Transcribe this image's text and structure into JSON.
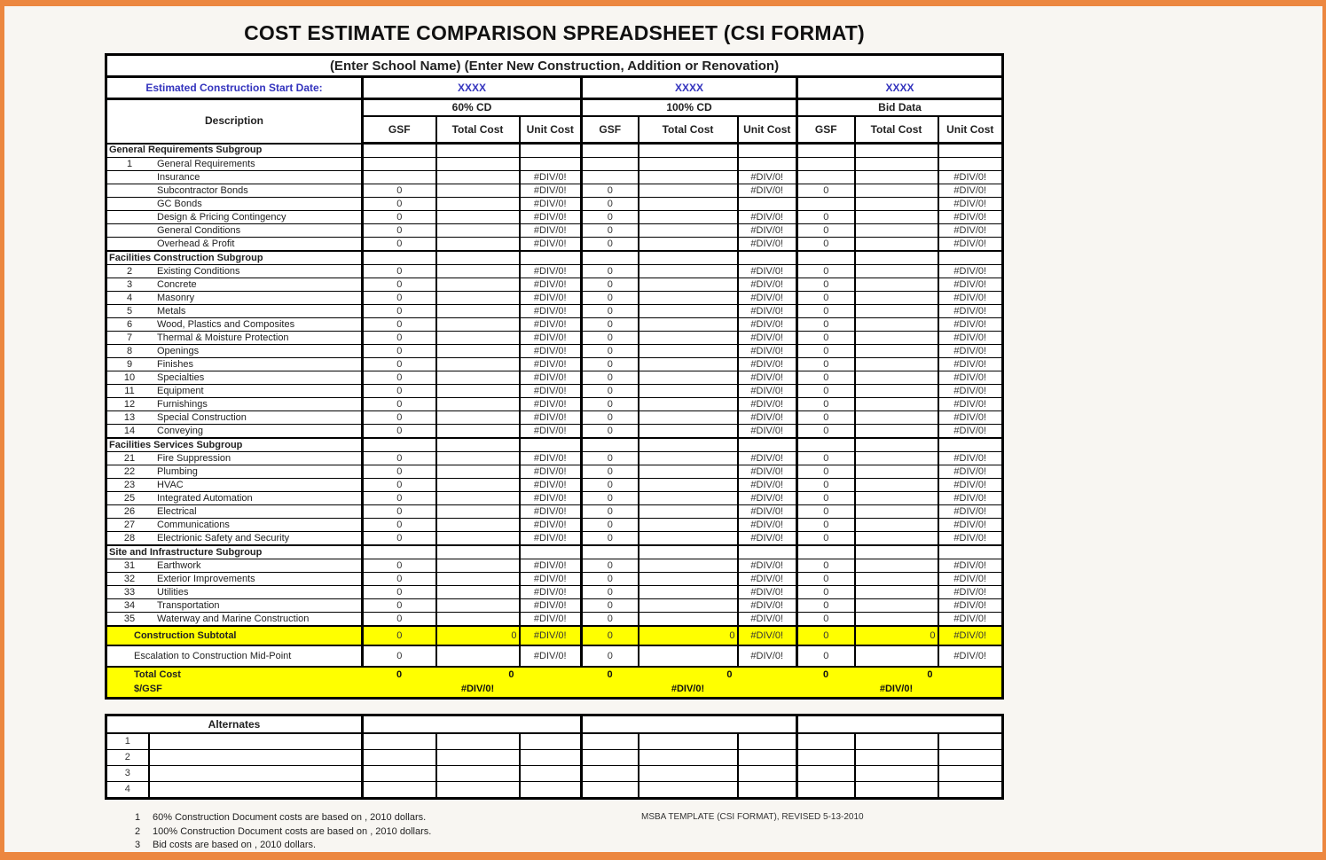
{
  "frame": {
    "border_color": "#EC8740",
    "page_bg": "#F8F6F2",
    "highlight_yellow": "#FFFF00",
    "accent_blue": "#3434BE"
  },
  "title": "COST ESTIMATE COMPARISON SPREADSHEET (CSI FORMAT)",
  "header": {
    "school_line": "(Enter School Name) (Enter New Construction, Addition or Renovation)",
    "date_label": "Estimated Construction Start Date:",
    "date_values": [
      "XXXX",
      "XXXX",
      "XXXX"
    ],
    "description_label": "Description",
    "groups": [
      {
        "label": "60% CD",
        "columns": [
          "GSF",
          "Total Cost",
          "Unit Cost"
        ]
      },
      {
        "label": "100% CD",
        "columns": [
          "GSF",
          "Total Cost",
          "Unit Cost"
        ]
      },
      {
        "label": "Bid Data",
        "columns": [
          "GSF",
          "Total Cost",
          "Unit Cost"
        ]
      }
    ]
  },
  "body": {
    "rows": [
      {
        "type": "subgroup",
        "label": "General Requirements Subgroup"
      },
      {
        "type": "item",
        "num": "1",
        "label": "General Requirements",
        "cells": [
          "",
          "",
          "",
          "",
          "",
          "",
          "",
          "",
          ""
        ]
      },
      {
        "type": "item",
        "num": "",
        "label": "Insurance",
        "cells": [
          "",
          "",
          "#DIV/0!",
          "",
          "",
          "#DIV/0!",
          "",
          "",
          "#DIV/0!"
        ]
      },
      {
        "type": "item",
        "num": "",
        "label": "Subcontractor Bonds",
        "cells": [
          "0",
          "",
          "#DIV/0!",
          "0",
          "",
          "#DIV/0!",
          "0",
          "",
          "#DIV/0!"
        ]
      },
      {
        "type": "item",
        "num": "",
        "label": "GC Bonds",
        "cells": [
          "0",
          "",
          "#DIV/0!",
          "0",
          "",
          "",
          "",
          "",
          "#DIV/0!"
        ]
      },
      {
        "type": "item",
        "num": "",
        "label": "Design & Pricing Contingency",
        "cells": [
          "0",
          "",
          "#DIV/0!",
          "0",
          "",
          "#DIV/0!",
          "0",
          "",
          "#DIV/0!"
        ]
      },
      {
        "type": "item",
        "num": "",
        "label": "General Conditions",
        "cells": [
          "0",
          "",
          "#DIV/0!",
          "0",
          "",
          "#DIV/0!",
          "0",
          "",
          "#DIV/0!"
        ]
      },
      {
        "type": "item",
        "num": "",
        "label": "Overhead & Profit",
        "cells": [
          "0",
          "",
          "#DIV/0!",
          "0",
          "",
          "#DIV/0!",
          "0",
          "",
          "#DIV/0!"
        ]
      },
      {
        "type": "subgroup",
        "label": "Facilities Construction Subgroup"
      },
      {
        "type": "item",
        "num": "2",
        "label": "Existing Conditions",
        "cells": [
          "0",
          "",
          "#DIV/0!",
          "0",
          "",
          "#DIV/0!",
          "0",
          "",
          "#DIV/0!"
        ]
      },
      {
        "type": "item",
        "num": "3",
        "label": "Concrete",
        "cells": [
          "0",
          "",
          "#DIV/0!",
          "0",
          "",
          "#DIV/0!",
          "0",
          "",
          "#DIV/0!"
        ]
      },
      {
        "type": "item",
        "num": "4",
        "label": "Masonry",
        "cells": [
          "0",
          "",
          "#DIV/0!",
          "0",
          "",
          "#DIV/0!",
          "0",
          "",
          "#DIV/0!"
        ]
      },
      {
        "type": "item",
        "num": "5",
        "label": "Metals",
        "cells": [
          "0",
          "",
          "#DIV/0!",
          "0",
          "",
          "#DIV/0!",
          "0",
          "",
          "#DIV/0!"
        ]
      },
      {
        "type": "item",
        "num": "6",
        "label": "Wood, Plastics and Composites",
        "cells": [
          "0",
          "",
          "#DIV/0!",
          "0",
          "",
          "#DIV/0!",
          "0",
          "",
          "#DIV/0!"
        ]
      },
      {
        "type": "item",
        "num": "7",
        "label": "Thermal & Moisture Protection",
        "cells": [
          "0",
          "",
          "#DIV/0!",
          "0",
          "",
          "#DIV/0!",
          "0",
          "",
          "#DIV/0!"
        ]
      },
      {
        "type": "item",
        "num": "8",
        "label": "Openings",
        "cells": [
          "0",
          "",
          "#DIV/0!",
          "0",
          "",
          "#DIV/0!",
          "0",
          "",
          "#DIV/0!"
        ]
      },
      {
        "type": "item",
        "num": "9",
        "label": "Finishes",
        "cells": [
          "0",
          "",
          "#DIV/0!",
          "0",
          "",
          "#DIV/0!",
          "0",
          "",
          "#DIV/0!"
        ]
      },
      {
        "type": "item",
        "num": "10",
        "label": "Specialties",
        "cells": [
          "0",
          "",
          "#DIV/0!",
          "0",
          "",
          "#DIV/0!",
          "0",
          "",
          "#DIV/0!"
        ]
      },
      {
        "type": "item",
        "num": "11",
        "label": "Equipment",
        "cells": [
          "0",
          "",
          "#DIV/0!",
          "0",
          "",
          "#DIV/0!",
          "0",
          "",
          "#DIV/0!"
        ]
      },
      {
        "type": "item",
        "num": "12",
        "label": "Furnishings",
        "cells": [
          "0",
          "",
          "#DIV/0!",
          "0",
          "",
          "#DIV/0!",
          "0",
          "",
          "#DIV/0!"
        ]
      },
      {
        "type": "item",
        "num": "13",
        "label": "Special Construction",
        "cells": [
          "0",
          "",
          "#DIV/0!",
          "0",
          "",
          "#DIV/0!",
          "0",
          "",
          "#DIV/0!"
        ]
      },
      {
        "type": "item",
        "num": "14",
        "label": "Conveying",
        "cells": [
          "0",
          "",
          "#DIV/0!",
          "0",
          "",
          "#DIV/0!",
          "0",
          "",
          "#DIV/0!"
        ]
      },
      {
        "type": "subgroup",
        "label": "Facilities Services Subgroup"
      },
      {
        "type": "item",
        "num": "21",
        "label": "Fire Suppression",
        "cells": [
          "0",
          "",
          "#DIV/0!",
          "0",
          "",
          "#DIV/0!",
          "0",
          "",
          "#DIV/0!"
        ]
      },
      {
        "type": "item",
        "num": "22",
        "label": "Plumbing",
        "cells": [
          "0",
          "",
          "#DIV/0!",
          "0",
          "",
          "#DIV/0!",
          "0",
          "",
          "#DIV/0!"
        ]
      },
      {
        "type": "item",
        "num": "23",
        "label": "HVAC",
        "cells": [
          "0",
          "",
          "#DIV/0!",
          "0",
          "",
          "#DIV/0!",
          "0",
          "",
          "#DIV/0!"
        ]
      },
      {
        "type": "item",
        "num": "25",
        "label": "Integrated Automation",
        "cells": [
          "0",
          "",
          "#DIV/0!",
          "0",
          "",
          "#DIV/0!",
          "0",
          "",
          "#DIV/0!"
        ]
      },
      {
        "type": "item",
        "num": "26",
        "label": "Electrical",
        "cells": [
          "0",
          "",
          "#DIV/0!",
          "0",
          "",
          "#DIV/0!",
          "0",
          "",
          "#DIV/0!"
        ]
      },
      {
        "type": "item",
        "num": "27",
        "label": "Communications",
        "cells": [
          "0",
          "",
          "#DIV/0!",
          "0",
          "",
          "#DIV/0!",
          "0",
          "",
          "#DIV/0!"
        ]
      },
      {
        "type": "item",
        "num": "28",
        "label": "Electrionic Safety and Security",
        "cells": [
          "0",
          "",
          "#DIV/0!",
          "0",
          "",
          "#DIV/0!",
          "0",
          "",
          "#DIV/0!"
        ]
      },
      {
        "type": "subgroup",
        "label": "Site and Infrastructure Subgroup"
      },
      {
        "type": "item",
        "num": "31",
        "label": "Earthwork",
        "cells": [
          "0",
          "",
          "#DIV/0!",
          "0",
          "",
          "#DIV/0!",
          "0",
          "",
          "#DIV/0!"
        ]
      },
      {
        "type": "item",
        "num": "32",
        "label": "Exterior Improvements",
        "cells": [
          "0",
          "",
          "#DIV/0!",
          "0",
          "",
          "#DIV/0!",
          "0",
          "",
          "#DIV/0!"
        ]
      },
      {
        "type": "item",
        "num": "33",
        "label": "Utilities",
        "cells": [
          "0",
          "",
          "#DIV/0!",
          "0",
          "",
          "#DIV/0!",
          "0",
          "",
          "#DIV/0!"
        ]
      },
      {
        "type": "item",
        "num": "34",
        "label": "Transportation",
        "cells": [
          "0",
          "",
          "#DIV/0!",
          "0",
          "",
          "#DIV/0!",
          "0",
          "",
          "#DIV/0!"
        ]
      },
      {
        "type": "item",
        "num": "35",
        "label": "Waterway and Marine Construction",
        "cells": [
          "0",
          "",
          "#DIV/0!",
          "0",
          "",
          "#DIV/0!",
          "0",
          "",
          "#DIV/0!"
        ]
      },
      {
        "type": "subtotal",
        "label": "Construction Subtotal",
        "cells": [
          "0",
          "0",
          "#DIV/0!",
          "0",
          "0",
          "#DIV/0!",
          "0",
          "0",
          "#DIV/0!"
        ]
      },
      {
        "type": "escalation",
        "label": "Escalation to Construction Mid-Point",
        "cells": [
          "0",
          "",
          "#DIV/0!",
          "0",
          "",
          "#DIV/0!",
          "0",
          "",
          "#DIV/0!"
        ]
      },
      {
        "type": "total",
        "label": "Total Cost",
        "values": [
          [
            "0",
            "0"
          ],
          [
            "0",
            "0"
          ],
          [
            "0",
            "0"
          ]
        ]
      },
      {
        "type": "gsf",
        "label": "$/GSF",
        "values": [
          "#DIV/0!",
          "#DIV/0!",
          "#DIV/0!"
        ]
      }
    ]
  },
  "alternates": {
    "header": "Alternates",
    "rows": [
      {
        "num": "1"
      },
      {
        "num": "2"
      },
      {
        "num": "3"
      },
      {
        "num": "4"
      }
    ]
  },
  "footnotes": {
    "items": [
      {
        "num": "1",
        "text": "60% Construction Document costs are based on  , 2010 dollars."
      },
      {
        "num": "2",
        "text": "100% Construction Document costs are based on  , 2010 dollars."
      },
      {
        "num": "3",
        "text": "Bid costs are based on  , 2010 dollars."
      }
    ],
    "template_note": "MSBA TEMPLATE (CSI FORMAT), REVISED  5-13-2010"
  }
}
